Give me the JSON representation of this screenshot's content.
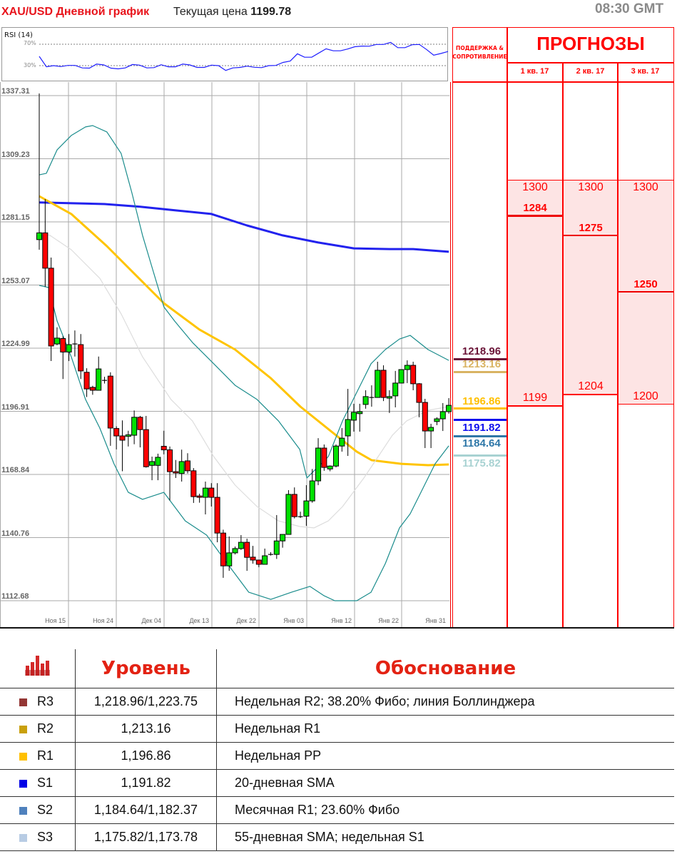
{
  "header": {
    "title": "XAU/USD Дневной график",
    "price_label": "Текущая цена",
    "price_value": "1199.78",
    "time": "08:30 GMT"
  },
  "rsi": {
    "label": "RSI (14)",
    "ticks": [
      "70%",
      "30%"
    ],
    "levels": [
      70,
      30
    ],
    "color": "#1f1fff",
    "values": [
      47.4,
      27.9,
      30,
      28.3,
      30.4,
      30.4,
      25.7,
      25.3,
      33,
      31.3,
      25.3,
      24.0,
      25.7,
      32.1,
      30.9,
      25.7,
      26.2,
      31.7,
      27.9,
      27.9,
      33,
      31.3,
      26.6,
      26.6,
      30.9,
      30,
      21.1,
      25.7,
      26.6,
      29.1,
      27.0,
      26.2,
      30,
      30.4,
      36,
      38.5,
      52.1,
      45.7,
      45.7,
      53.8,
      61.5,
      57.7,
      57.7,
      61.1,
      65.3,
      66.6,
      66.2,
      69.6,
      69.6,
      73.4,
      63.6,
      63.6,
      69.1,
      69.6,
      60.2,
      49.6,
      52.6,
      56.4
    ]
  },
  "chart_data": {
    "type": "candlestick",
    "ylim": [
      1112.68,
      1337.31
    ],
    "y_ticks": [
      "1337.31",
      "1309.23",
      "1281.15",
      "1253.07",
      "1224.99",
      "1196.91",
      "1168.84",
      "1140.76",
      "1112.68"
    ],
    "x_ticks": [
      "Ноя 15",
      "Ноя 24",
      "Дек 04",
      "Дек 13",
      "Дек 22",
      "Янв 03",
      "Янв 12",
      "Янв 22",
      "Янв 31"
    ],
    "grid": true,
    "colors": {
      "up": "#00e000",
      "down": "#ff0000",
      "sma_blue": "#2222ee",
      "sma_yellow": "#ffc400",
      "bollinger": "#1a8c8c",
      "bollinger_mid": "#dddddd"
    },
    "ohlc": [
      [
        1272,
        1337,
        1267.5,
        1275
      ],
      [
        1275,
        1290,
        1251,
        1259.3
      ],
      [
        1259.3,
        1264,
        1218,
        1224.7
      ],
      [
        1225.6,
        1233,
        1225,
        1228.2
      ],
      [
        1228,
        1229,
        1210,
        1222
      ],
      [
        1222,
        1230,
        1218,
        1225.3
      ],
      [
        1225.6,
        1231.6,
        1220,
        1225.6
      ],
      [
        1225.3,
        1230,
        1210,
        1213.6
      ],
      [
        1213,
        1214.8,
        1202,
        1205.6
      ],
      [
        1206.3,
        1207,
        1203,
        1205
      ],
      [
        1205,
        1220,
        1205,
        1214.5
      ],
      [
        1209.4,
        1211,
        1208,
        1209.4
      ],
      [
        1211.3,
        1213,
        1180.3,
        1188.2
      ],
      [
        1188,
        1189,
        1178.7,
        1184.7
      ],
      [
        1184.7,
        1191.6,
        1169,
        1182.8
      ],
      [
        1184.5,
        1187,
        1180,
        1185.2
      ],
      [
        1185,
        1196,
        1181,
        1193
      ],
      [
        1193,
        1193.6,
        1179.6,
        1187.5
      ],
      [
        1187.5,
        1193.6,
        1170.6,
        1171
      ],
      [
        1171.6,
        1175.5,
        1165,
        1173.3
      ],
      [
        1171.6,
        1176.8,
        1165,
        1175.2
      ],
      [
        1180.1,
        1187,
        1176.5,
        1178.5
      ],
      [
        1178.5,
        1180,
        1156,
        1168.8
      ],
      [
        1168.8,
        1174,
        1166,
        1168.2
      ],
      [
        1168,
        1178.6,
        1164.4,
        1173.3
      ],
      [
        1173.6,
        1177,
        1168,
        1169.2
      ],
      [
        1169.2,
        1170.4,
        1154.9,
        1157.7
      ],
      [
        1158,
        1159,
        1155,
        1157.4
      ],
      [
        1157.4,
        1164.4,
        1149.8,
        1161.5
      ],
      [
        1161.5,
        1163.7,
        1153.3,
        1157.4
      ],
      [
        1157.4,
        1163.7,
        1137.4,
        1141.5
      ],
      [
        1141.5,
        1143,
        1121.6,
        1126.9
      ],
      [
        1126.9,
        1140,
        1124.7,
        1132.7
      ],
      [
        1132.7,
        1135.5,
        1132,
        1134.6
      ],
      [
        1134.6,
        1140.6,
        1134,
        1137.4
      ],
      [
        1137.4,
        1139,
        1124.7,
        1130.7
      ],
      [
        1130.8,
        1135.8,
        1127.9,
        1129.5
      ],
      [
        1129.5,
        1129.5,
        1126.3,
        1127.6
      ],
      [
        1127.6,
        1134.6,
        1127.6,
        1131.4
      ],
      [
        1132,
        1133,
        1131.5,
        1132
      ],
      [
        1132,
        1149.5,
        1130,
        1138
      ],
      [
        1138,
        1140.9,
        1135,
        1140.9
      ],
      [
        1140.9,
        1160.6,
        1140.9,
        1158.7
      ],
      [
        1158.7,
        1161.8,
        1148,
        1148.8
      ],
      [
        1148.8,
        1151,
        1148.2,
        1148.8
      ],
      [
        1149,
        1162.8,
        1144.7,
        1155.8
      ],
      [
        1155.8,
        1170,
        1155,
        1164.7
      ],
      [
        1164.7,
        1183.7,
        1162.8,
        1179.3
      ],
      [
        1179.3,
        1180.9,
        1169.2,
        1170.7
      ],
      [
        1170,
        1171.6,
        1169,
        1171.3
      ],
      [
        1171.3,
        1180.9,
        1170.7,
        1180.2
      ],
      [
        1180.2,
        1188.2,
        1177.7,
        1183.7
      ],
      [
        1184.7,
        1205.6,
        1175.8,
        1192
      ],
      [
        1191.7,
        1199,
        1186.6,
        1195.2
      ],
      [
        1194.6,
        1199,
        1186.6,
        1195.5
      ],
      [
        1198.7,
        1205,
        1196.8,
        1202.2
      ],
      [
        1201.8,
        1207.2,
        1197.7,
        1201.8
      ],
      [
        1201.8,
        1217.7,
        1201.8,
        1213.9
      ],
      [
        1213.9,
        1216.1,
        1200.2,
        1201.8
      ],
      [
        1201.5,
        1205,
        1194.9,
        1202.2
      ],
      [
        1202.5,
        1213.6,
        1197.4,
        1208.2
      ],
      [
        1208.2,
        1214.2,
        1208.2,
        1214.2
      ],
      [
        1214.2,
        1218.3,
        1208.2,
        1216.1
      ],
      [
        1216.1,
        1217.7,
        1205,
        1207.9
      ],
      [
        1207.9,
        1208.2,
        1193,
        1199.6
      ],
      [
        1199.6,
        1201.2,
        1179.3,
        1186.9
      ],
      [
        1186.9,
        1190.1,
        1179.3,
        1188.5
      ],
      [
        1191.1,
        1193,
        1189.5,
        1192.3
      ],
      [
        1192.3,
        1199.3,
        1186.9,
        1195.5
      ],
      [
        1195.5,
        1201.5,
        1194.6,
        1198.3
      ]
    ],
    "overlays": [
      {
        "id": "sma-blue",
        "color": "#2222ee",
        "width": 3,
        "points": [
          [
            0,
            1288.5
          ],
          [
            11,
            1287.8
          ],
          [
            17,
            1286.6
          ],
          [
            23,
            1285
          ],
          [
            29,
            1283.4
          ],
          [
            35,
            1278.3
          ],
          [
            41,
            1273.9
          ],
          [
            47,
            1270.7
          ],
          [
            53,
            1268.1
          ],
          [
            59,
            1267.8
          ],
          [
            63,
            1267.8
          ],
          [
            69,
            1266.6
          ]
        ]
      },
      {
        "id": "sma-yellow",
        "color": "#ffc400",
        "width": 3,
        "points": [
          [
            0,
            1291.3
          ],
          [
            5.4,
            1283.4
          ],
          [
            11.4,
            1269.1
          ],
          [
            17.4,
            1253.2
          ],
          [
            21,
            1243.7
          ],
          [
            27,
            1232
          ],
          [
            33,
            1223.1
          ],
          [
            39,
            1210.4
          ],
          [
            44,
            1197.7
          ],
          [
            50,
            1185
          ],
          [
            53.5,
            1177.7
          ],
          [
            56,
            1173.9
          ],
          [
            61,
            1172.3
          ],
          [
            65.5,
            1171.7
          ],
          [
            69,
            1172
          ]
        ]
      },
      {
        "id": "bollinger-mid",
        "color": "#dddddd",
        "width": 1.2,
        "points": [
          [
            0,
            1275.4
          ],
          [
            1.8,
            1273.9
          ],
          [
            5.4,
            1267.5
          ],
          [
            10.2,
            1254.8
          ],
          [
            13.8,
            1239
          ],
          [
            17.4,
            1219.9
          ],
          [
            22.2,
            1200.9
          ],
          [
            25.8,
            1191.4
          ],
          [
            29.4,
            1175.5
          ],
          [
            33,
            1162.8
          ],
          [
            36.7,
            1153.3
          ],
          [
            40.3,
            1146.9
          ],
          [
            43.9,
            1144.4
          ],
          [
            46.3,
            1143.8
          ],
          [
            48.7,
            1146.9
          ],
          [
            51.1,
            1153.3
          ],
          [
            54.7,
            1166
          ],
          [
            57.1,
            1175.5
          ],
          [
            59.5,
            1185
          ],
          [
            61.9,
            1191.4
          ],
          [
            65.5,
            1196.1
          ],
          [
            69,
            1197.7
          ]
        ]
      },
      {
        "id": "bollinger-upper",
        "color": "#1a8c8c",
        "width": 1.2,
        "points": [
          [
            0,
            1300.8
          ],
          [
            1.2,
            1301.5
          ],
          [
            3,
            1311.9
          ],
          [
            5.4,
            1318.3
          ],
          [
            7.8,
            1322.1
          ],
          [
            9,
            1322.7
          ],
          [
            11.4,
            1319.9
          ],
          [
            13.8,
            1310.3
          ],
          [
            15.6,
            1292.9
          ],
          [
            17.4,
            1273.9
          ],
          [
            19.2,
            1258
          ],
          [
            21,
            1242.1
          ],
          [
            22.8,
            1235.8
          ],
          [
            25.8,
            1226.3
          ],
          [
            29.4,
            1216.8
          ],
          [
            33,
            1207.2
          ],
          [
            36.7,
            1200.9
          ],
          [
            40.3,
            1191.4
          ],
          [
            43.9,
            1178.7
          ],
          [
            45.1,
            1166
          ],
          [
            46.3,
            1169.2
          ],
          [
            48.7,
            1175.5
          ],
          [
            51.1,
            1191.4
          ],
          [
            53.5,
            1204.1
          ],
          [
            55.9,
            1216.8
          ],
          [
            58.3,
            1223.1
          ],
          [
            60.7,
            1227.8
          ],
          [
            62.5,
            1229.4
          ],
          [
            65.5,
            1223.1
          ],
          [
            69,
            1218.3
          ]
        ]
      },
      {
        "id": "bollinger-lower",
        "color": "#1a8c8c",
        "width": 1.2,
        "points": [
          [
            0,
            1251.6
          ],
          [
            1.6,
            1250.7
          ],
          [
            3,
            1235.8
          ],
          [
            5.4,
            1219.9
          ],
          [
            7.8,
            1200.9
          ],
          [
            10.2,
            1188.2
          ],
          [
            12.6,
            1172.3
          ],
          [
            15,
            1159.6
          ],
          [
            17.4,
            1156.5
          ],
          [
            21,
            1159.6
          ],
          [
            24.6,
            1146.9
          ],
          [
            28.2,
            1140.6
          ],
          [
            31.7,
            1127.9
          ],
          [
            35.3,
            1115.2
          ],
          [
            39,
            1112
          ],
          [
            42.5,
            1115.2
          ],
          [
            45.6,
            1117.8
          ],
          [
            48,
            1113.6
          ],
          [
            49.8,
            1111.4
          ],
          [
            53.5,
            1111.4
          ],
          [
            55.9,
            1115.2
          ],
          [
            58.3,
            1127.9
          ],
          [
            60.7,
            1143.8
          ],
          [
            62.5,
            1150.1
          ],
          [
            64.3,
            1159.6
          ],
          [
            66.7,
            1172.3
          ],
          [
            69,
            1180.3
          ]
        ]
      }
    ]
  },
  "sr_levels": [
    {
      "value": "1218.96",
      "price": 1218.96,
      "color": "#6b1538",
      "pos": "above"
    },
    {
      "value": "1213.16",
      "price": 1213.16,
      "color": "#d9b363",
      "pos": "above"
    },
    {
      "value": "1196.86",
      "price": 1196.86,
      "color": "#ffc000",
      "pos": "above"
    },
    {
      "value": "1191.82",
      "price": 1191.82,
      "color": "#1010ee",
      "pos": "below"
    },
    {
      "value": "1184.64",
      "price": 1184.64,
      "color": "#2e77a8",
      "pos": "below"
    },
    {
      "value": "1175.82",
      "price": 1175.82,
      "color": "#a8d2d2",
      "pos": "below"
    }
  ],
  "forecast": {
    "sr_title": "ПОДДЕРЖКА & СОПРОТИВЛЕНИЕ",
    "title": "ПРОГНОЗЫ",
    "zone_color": "#fde4e4",
    "quarters": [
      {
        "label": "1 кв. 17",
        "high": "1300",
        "mid": "1284",
        "low": "1199",
        "high_p": 1298.3,
        "mid_p": 1282.7,
        "low_p": 1198.0
      },
      {
        "label": "2 кв. 17",
        "high": "1300",
        "mid": "1275",
        "low": "1204",
        "high_p": 1298.3,
        "mid_p": 1273.9,
        "low_p": 1203.1
      },
      {
        "label": "3 кв. 17",
        "high": "1300",
        "mid": "1250",
        "low": "1200",
        "high_p": 1298.3,
        "mid_p": 1248.8,
        "low_p": 1198.7
      }
    ]
  },
  "levels_table": {
    "headers": [
      "Уровень",
      "Обоснование"
    ],
    "rows": [
      {
        "name": "R3",
        "value": "1,218.96/1,223.75",
        "reason": "Недельная R2; 38.20% Фибо; линия Боллинджера",
        "color": "#943634"
      },
      {
        "name": "R2",
        "value": "1,213.16",
        "reason": "Недельная R1",
        "color": "#c9a00c"
      },
      {
        "name": "R1",
        "value": "1,196.86",
        "reason": "Недельная PP",
        "color": "#ffc000"
      },
      {
        "name": "S1",
        "value": "1,191.82",
        "reason": "20-дневная SMA",
        "color": "#0000e6"
      },
      {
        "name": "S2",
        "value": "1,184.64/1,182.37",
        "reason": "Месячная R1; 23.60% Фибо",
        "color": "#4f81bd"
      },
      {
        "name": "S3",
        "value": "1,175.82/1,173.78",
        "reason": "55-дневная SMA; недельная S1",
        "color": "#b8cce4"
      }
    ]
  }
}
